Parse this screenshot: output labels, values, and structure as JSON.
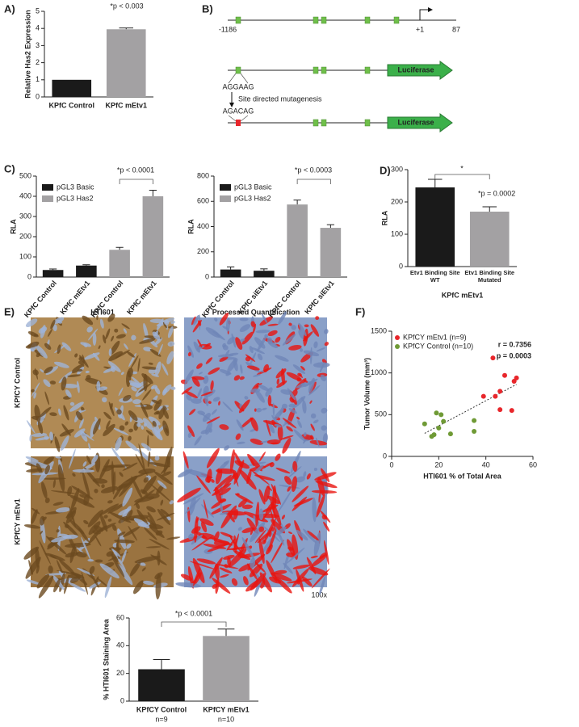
{
  "chart_data": [
    {
      "type": "bar",
      "label": "A)",
      "ylabel": "Relative Has2 Expression",
      "categories": [
        "KPfC Control",
        "KPfC mEtv1"
      ],
      "values": [
        1.0,
        3.95
      ],
      "errors": [
        null,
        0.08
      ],
      "colors": [
        "#1a1a1a",
        "#a3a1a3"
      ],
      "ylim": [
        0,
        5
      ],
      "yticks": [
        0,
        1,
        2,
        3,
        4,
        5
      ],
      "annotations": [
        "*p < 0.003"
      ]
    },
    {
      "type": "bar",
      "label": "C)",
      "ylabel": "RLA",
      "categories": [
        "KPfC Control",
        "KPfC mEtv1",
        "KPfC Control",
        "KPfC mEtv1"
      ],
      "series": [
        {
          "name": "pGL3 Basic",
          "color": "#1a1a1a",
          "values": [
            35,
            57,
            null,
            null
          ],
          "errors": [
            5,
            4,
            null,
            null
          ]
        },
        {
          "name": "pGL3 Has2",
          "color": "#a3a1a3",
          "values": [
            null,
            null,
            135,
            400
          ],
          "errors": [
            null,
            null,
            12,
            30
          ]
        }
      ],
      "ylim": [
        0,
        500
      ],
      "yticks": [
        0,
        100,
        200,
        300,
        400,
        500
      ],
      "annotations": [
        "*p < 0.0001"
      ]
    },
    {
      "type": "bar",
      "ylabel": "RLA",
      "categories": [
        "KPfC Control",
        "KPfC siEtv1",
        "KPfC Control",
        "KPfC siEtv1"
      ],
      "series": [
        {
          "name": "pGL3 Basic",
          "color": "#1a1a1a",
          "values": [
            60,
            50,
            null,
            null
          ],
          "errors": [
            20,
            15,
            null,
            null
          ]
        },
        {
          "name": "pGL3 Has2",
          "color": "#a3a1a3",
          "values": [
            null,
            null,
            575,
            390
          ],
          "errors": [
            null,
            null,
            35,
            25
          ]
        }
      ],
      "ylim": [
        0,
        800
      ],
      "yticks": [
        0,
        200,
        400,
        600,
        800
      ],
      "annotations": [
        "*p < 0.0003"
      ]
    },
    {
      "type": "bar",
      "label": "D)",
      "ylabel": "RLA",
      "xlabel": "KPfC mEtv1",
      "categories": [
        "Etv1 Binding Site WT",
        "Etv1 Binding Site Mutated"
      ],
      "values": [
        245,
        170
      ],
      "errors": [
        25,
        15
      ],
      "colors": [
        "#1a1a1a",
        "#a3a1a3"
      ],
      "ylim": [
        0,
        300
      ],
      "yticks": [
        0,
        100,
        200,
        300
      ],
      "annotations": [
        "*",
        "*p = 0.0002"
      ]
    },
    {
      "type": "bar",
      "ylabel": "% HTI601 Staining Area",
      "categories": [
        "KPfCY Control",
        "KPfCY mEtv1"
      ],
      "sublabels": [
        "n=9",
        "n=10"
      ],
      "values": [
        23,
        47
      ],
      "errors": [
        7,
        5
      ],
      "colors": [
        "#1a1a1a",
        "#a3a1a3"
      ],
      "ylim": [
        0,
        60
      ],
      "yticks": [
        0,
        20,
        40,
        60
      ],
      "annotations": [
        "*p < 0.0001"
      ]
    },
    {
      "type": "scatter",
      "label": "F)",
      "xlabel": "HTI601 % of Total Area",
      "ylabel": "Tumor Volume (mm³)",
      "series": [
        {
          "name": "KPfCY mEtv1 (n=9)",
          "color": "#e8262b",
          "x": [
            43,
            48,
            52,
            53,
            46,
            44,
            39,
            46,
            51
          ],
          "values": [
            1180,
            970,
            900,
            940,
            780,
            720,
            720,
            560,
            550
          ]
        },
        {
          "name": "KPfCY Control (n=10)",
          "color": "#6f9a35",
          "x": [
            14,
            19,
            21,
            20,
            22,
            18,
            25,
            17,
            35,
            35
          ],
          "values": [
            390,
            520,
            500,
            340,
            420,
            260,
            270,
            240,
            430,
            300
          ]
        }
      ],
      "xlim": [
        0,
        60
      ],
      "xticks": [
        0,
        20,
        40,
        60
      ],
      "ylim": [
        0,
        1500
      ],
      "yticks": [
        0,
        500,
        1000,
        1500
      ],
      "annotations": [
        "r = 0.7356",
        "p = 0.0003"
      ]
    }
  ],
  "diagram": {
    "label": "B)",
    "start": "-1186",
    "tss": "+1",
    "end": "87",
    "wt_seq": "AGGAAG",
    "mut_seq": "AGACAG",
    "arrow_label": "Site directed mutagenesis",
    "reporter": "Luciferase"
  },
  "images": {
    "label": "E)",
    "columns": [
      "HTI601",
      "Processed Quantification"
    ],
    "rows": [
      "KPfCY Control",
      "KPfCY mEtv1"
    ],
    "magnification": "100x"
  }
}
